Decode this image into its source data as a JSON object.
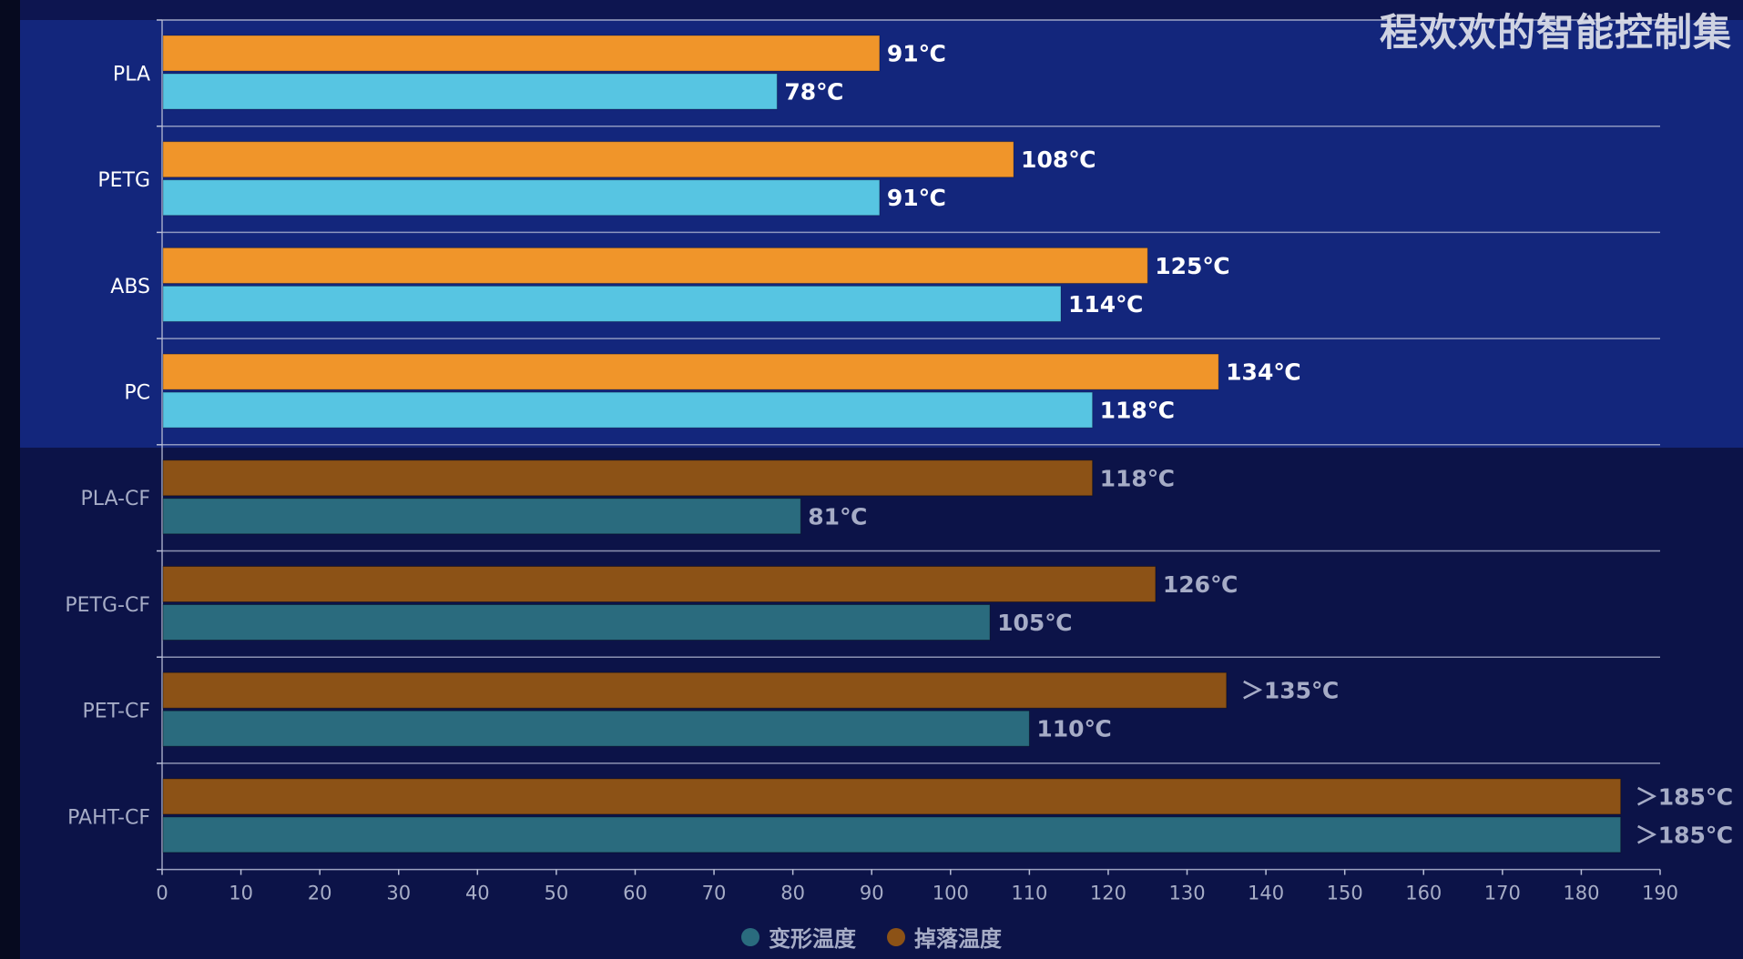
{
  "watermark": "程欢欢的智能控制集",
  "chart_data": {
    "type": "bar",
    "orientation": "horizontal",
    "categories": [
      "PLA",
      "PETG",
      "ABS",
      "PC",
      "PLA-CF",
      "PETG-CF",
      "PET-CF",
      "PAHT-CF"
    ],
    "highlighted_categories": [
      "PLA",
      "PETG",
      "ABS",
      "PC"
    ],
    "series": [
      {
        "name": "掉落温度",
        "color": "#f0952a",
        "dim_color": "#8c5216",
        "values": [
          91,
          108,
          125,
          134,
          118,
          126,
          135,
          185
        ],
        "labels": [
          "91℃",
          "108℃",
          "125℃",
          "134℃",
          "118℃",
          "126℃",
          "＞135℃",
          "＞185℃"
        ]
      },
      {
        "name": "变形温度",
        "color": "#57c5e2",
        "dim_color": "#2a6b7e",
        "values": [
          78,
          91,
          114,
          118,
          81,
          105,
          110,
          185
        ],
        "labels": [
          "78℃",
          "91℃",
          "114℃",
          "118℃",
          "81℃",
          "105℃",
          "110℃",
          "＞185℃"
        ]
      }
    ],
    "xlim": [
      0,
      190
    ],
    "xticks": [
      0,
      10,
      20,
      30,
      40,
      50,
      60,
      70,
      80,
      90,
      100,
      110,
      120,
      130,
      140,
      150,
      160,
      170,
      180,
      190
    ],
    "grid": true,
    "legend": {
      "position": "bottom",
      "items": [
        "变形温度",
        "掉落温度"
      ],
      "colors": [
        "#2a6b7e",
        "#8c5216"
      ]
    }
  }
}
